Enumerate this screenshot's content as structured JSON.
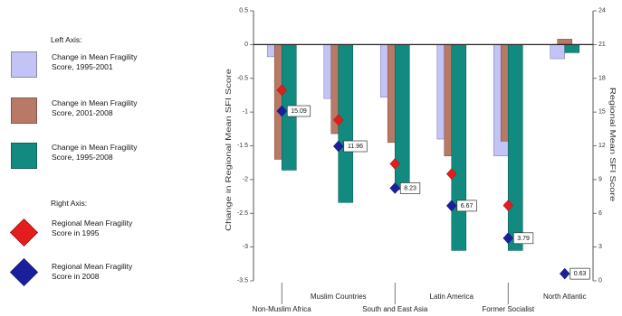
{
  "legend": {
    "left_header": "Left Axis:",
    "right_header": "Right Axis:"
  },
  "chart_data": {
    "type": "bar",
    "categories": [
      "Non-Muslim Africa",
      "Muslim Countries",
      "South and East Asia",
      "Latin America",
      "Former Socialist",
      "North Atlantic"
    ],
    "series": [
      {
        "name": "Change in Mean Fragility Score, 1995-2001",
        "kind": "bar",
        "axis": "left",
        "color": "#c3c3f5",
        "values": [
          -0.18,
          -0.8,
          -0.78,
          -1.4,
          -1.65,
          -0.21
        ]
      },
      {
        "name": "Change in Mean Fragility Score, 2001-2008",
        "kind": "bar",
        "axis": "left",
        "color": "#b87a66",
        "values": [
          -1.7,
          -1.32,
          -1.45,
          -1.65,
          -1.43,
          0.08
        ]
      },
      {
        "name": "Change in Mean Fragility Score, 1995-2008",
        "kind": "bar",
        "axis": "left",
        "color": "#138a80",
        "values": [
          -1.86,
          -2.34,
          -2.15,
          -3.05,
          -3.05,
          -0.12
        ]
      },
      {
        "name": "Regional Mean Fragility Score in 1995",
        "kind": "marker",
        "axis": "right",
        "color": "#e31c1c",
        "values": [
          16.95,
          14.3,
          10.4,
          9.5,
          6.7,
          null
        ]
      },
      {
        "name": "Regional Mean Fragility Score in 2008",
        "kind": "marker",
        "axis": "right",
        "color": "#1c1f9c",
        "values": [
          15.09,
          11.96,
          8.23,
          6.67,
          3.79,
          0.63
        ],
        "data_labels": true
      }
    ],
    "ylabel": "Change in Regional Mean SFI Score",
    "y2label": "Regional Mean SFI Score",
    "ylim": [
      -3.5,
      0.5
    ],
    "y2lim": [
      0,
      24
    ],
    "yticks": [
      0.5,
      0,
      -0.5,
      -1,
      -1.5,
      -2,
      -2.5,
      -3,
      -3.5
    ],
    "y2ticks": [
      24,
      21,
      18,
      15,
      12,
      9,
      6,
      3,
      0
    ],
    "grid": false,
    "legend_position": "left"
  }
}
